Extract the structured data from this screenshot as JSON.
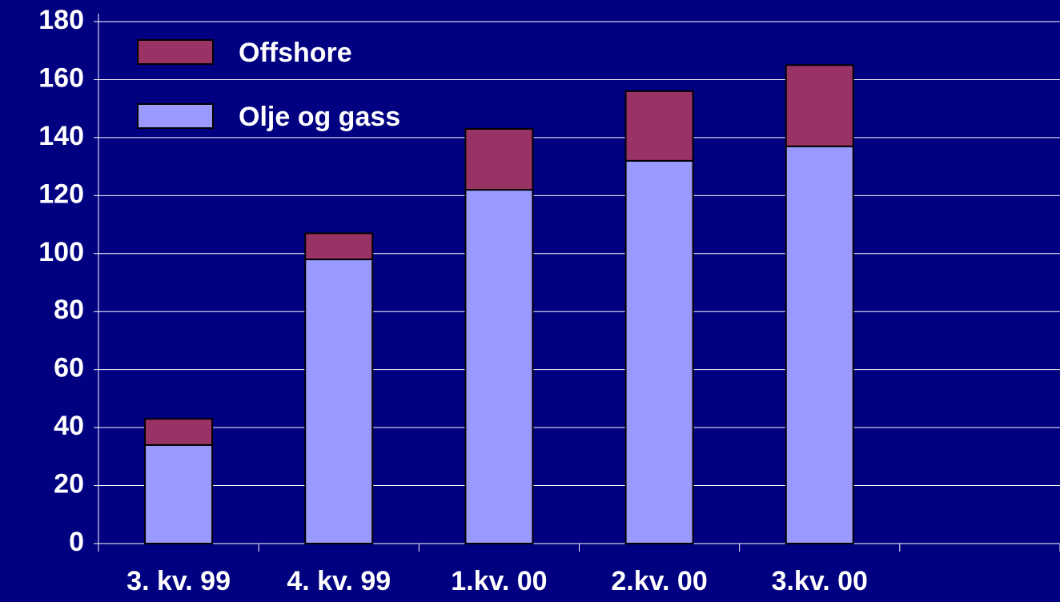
{
  "chart_data": {
    "type": "stacked_bar",
    "categories": [
      "3. kv. 99",
      "4. kv. 99",
      "1.kv. 00",
      "2.kv. 00",
      "3.kv. 00",
      null
    ],
    "series": [
      {
        "name": "Olje og gass",
        "color": "#9999ff",
        "values": [
          34,
          98,
          122,
          132,
          137,
          null
        ]
      },
      {
        "name": "Offshore",
        "color": "#993366",
        "values": [
          9,
          9,
          21,
          24,
          28,
          null
        ]
      }
    ],
    "ylim": [
      0,
      180
    ],
    "yticks": [
      0,
      20,
      40,
      60,
      80,
      100,
      120,
      140,
      160,
      180
    ],
    "grid": true,
    "legend": "top-left"
  }
}
